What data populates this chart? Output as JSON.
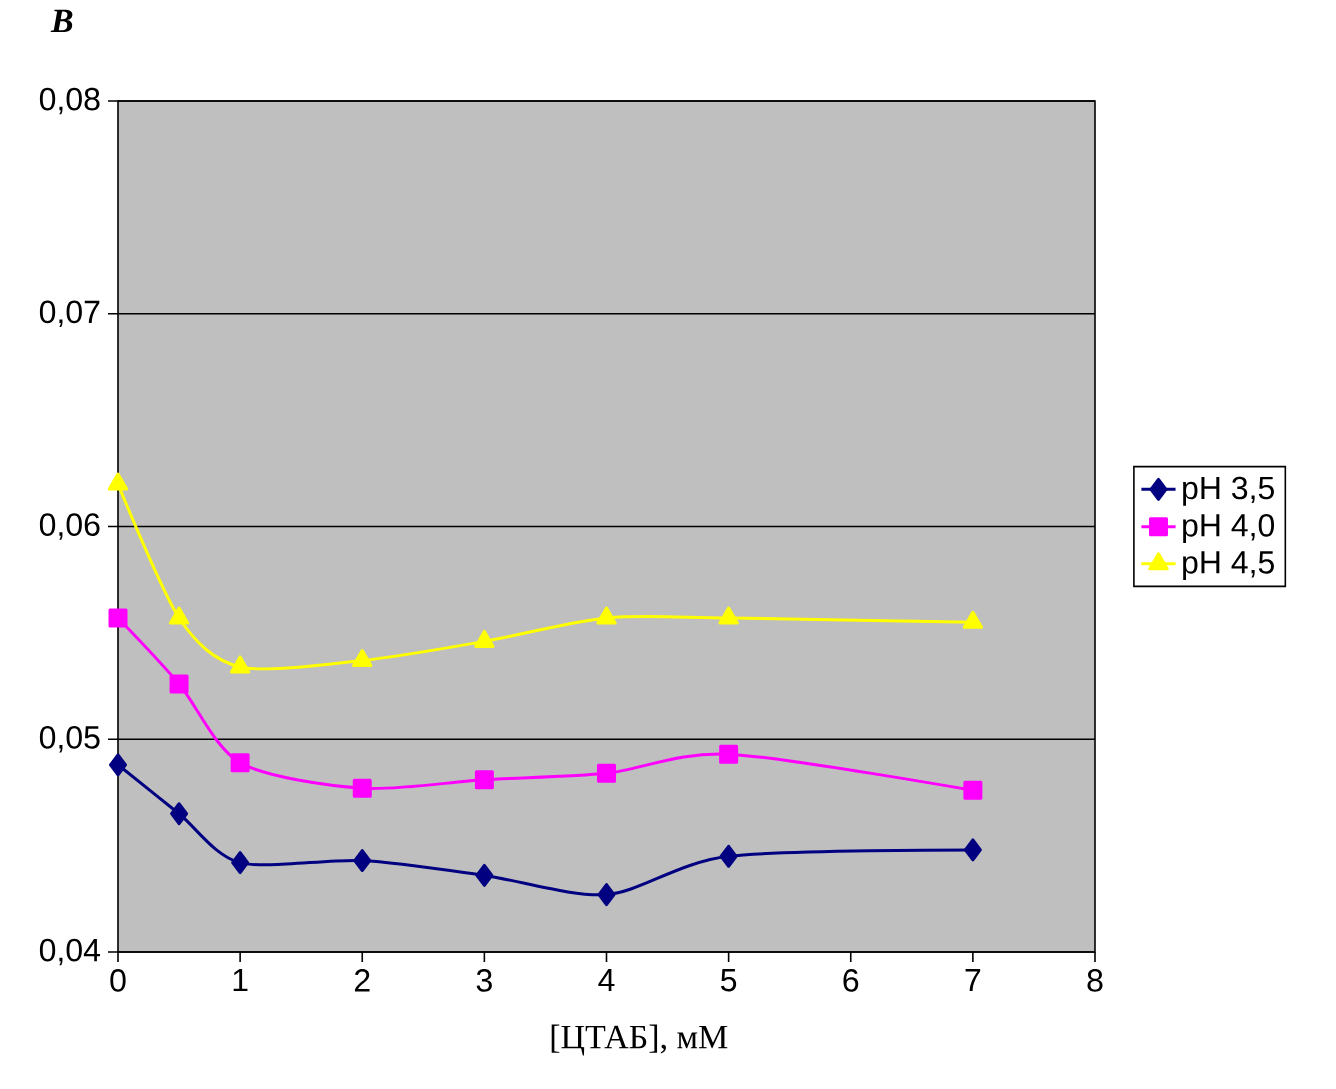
{
  "chart_data": {
    "type": "line",
    "title": "В",
    "xlabel": "[ЦТАБ], мМ",
    "x": [
      0,
      0.5,
      1,
      2,
      3,
      4,
      5,
      7
    ],
    "series": [
      {
        "name": "pH 3,5",
        "color": "#000080",
        "marker": "diamond",
        "values": [
          0.0488,
          0.0465,
          0.0442,
          0.0443,
          0.0436,
          0.0427,
          0.0445,
          0.0448
        ]
      },
      {
        "name": "pH 4,0",
        "color": "#ff00ff",
        "marker": "square",
        "values": [
          0.0557,
          0.0526,
          0.0489,
          0.0477,
          0.0481,
          0.0484,
          0.0493,
          0.0476
        ]
      },
      {
        "name": "pH 4,5",
        "color": "#ffff00",
        "marker": "triangle",
        "values": [
          0.062,
          0.0557,
          0.0534,
          0.0537,
          0.0546,
          0.0557,
          0.0557,
          0.0555
        ]
      }
    ],
    "xlim": [
      0,
      8
    ],
    "xticks": [
      0,
      1,
      2,
      3,
      4,
      5,
      6,
      7,
      8
    ],
    "ylim": [
      0.04,
      0.08
    ],
    "yticks": [
      {
        "value": 0.04,
        "label": "0,04"
      },
      {
        "value": 0.05,
        "label": "0,05"
      },
      {
        "value": 0.06,
        "label": "0,06"
      },
      {
        "value": 0.07,
        "label": "0,07"
      },
      {
        "value": 0.08,
        "label": "0,08"
      }
    ],
    "grid": "y",
    "legend": "right",
    "line_style": "solid"
  }
}
